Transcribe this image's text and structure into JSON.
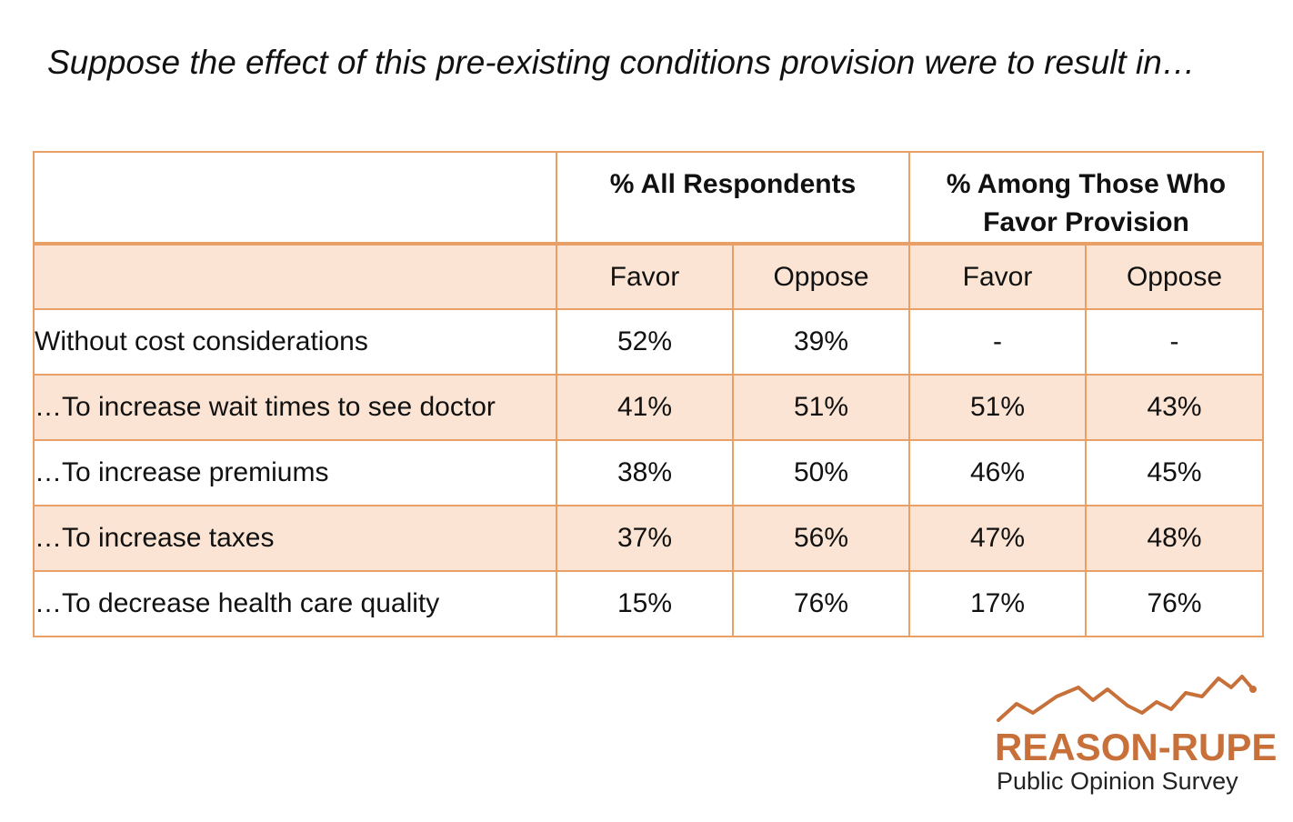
{
  "title": "Suppose the effect of this pre-existing conditions provision were to result in…",
  "chart_data": {
    "type": "table",
    "column_groups": [
      {
        "label": "% All Respondents",
        "columns": [
          "Favor",
          "Oppose"
        ]
      },
      {
        "label": "% Among Those Who Favor Provision",
        "columns": [
          "Favor",
          "Oppose"
        ]
      }
    ],
    "rows": [
      {
        "label": "Without cost considerations",
        "values": [
          "52%",
          "39%",
          "-",
          "-"
        ]
      },
      {
        "label": "…To increase wait times to see doctor",
        "values": [
          "41%",
          "51%",
          "51%",
          "43%"
        ]
      },
      {
        "label": "…To increase premiums",
        "values": [
          "38%",
          "50%",
          "46%",
          "45%"
        ]
      },
      {
        "label": "…To increase taxes",
        "values": [
          "37%",
          "56%",
          "47%",
          "48%"
        ]
      },
      {
        "label": "…To decrease health care quality",
        "values": [
          "15%",
          "76%",
          "17%",
          "76%"
        ]
      }
    ]
  },
  "logo": {
    "name": "REASON-RUPE",
    "subtitle": "Public Opinion Survey",
    "color": "#c8703a"
  },
  "colors": {
    "border": "#e9a066",
    "shade": "#fbe4d3"
  }
}
